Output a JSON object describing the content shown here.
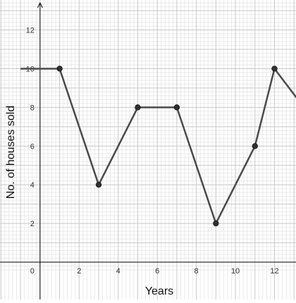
{
  "chart_data": {
    "type": "line",
    "title": "",
    "xlabel": "Years",
    "ylabel": "No. of houses sold",
    "xlim": [
      -2.05,
      13.1
    ],
    "ylim": [
      -0.4,
      13.55
    ],
    "x_ticks": [
      {
        "value": 0,
        "label": "0"
      },
      {
        "value": 2,
        "label": "2"
      },
      {
        "value": 4,
        "label": "4"
      },
      {
        "value": 6,
        "label": "6"
      },
      {
        "value": 8,
        "label": "8"
      },
      {
        "value": 10,
        "label": "10"
      },
      {
        "value": 12,
        "label": "12"
      }
    ],
    "y_ticks": [
      {
        "value": 2,
        "label": "2"
      },
      {
        "value": 4,
        "label": "4"
      },
      {
        "value": 6,
        "label": "6"
      },
      {
        "value": 8,
        "label": "8"
      },
      {
        "value": 10,
        "label": "10"
      },
      {
        "value": 12,
        "label": "12"
      }
    ],
    "grid": {
      "major": 1,
      "minor": 0.2
    },
    "series": [
      {
        "x": [
          -1,
          1,
          3,
          5,
          7,
          9,
          11,
          12,
          13.5
        ],
        "y": [
          10,
          10,
          4,
          8,
          8,
          2,
          6,
          10,
          8
        ],
        "marked": [
          false,
          true,
          true,
          true,
          true,
          true,
          true,
          true,
          false
        ]
      }
    ],
    "colors": {
      "line": "#4a4a4a",
      "point": "#2f2f2f",
      "major_grid": "#c8c8c8",
      "minor_grid": "#e9e9e9",
      "axis": "#000000"
    }
  }
}
